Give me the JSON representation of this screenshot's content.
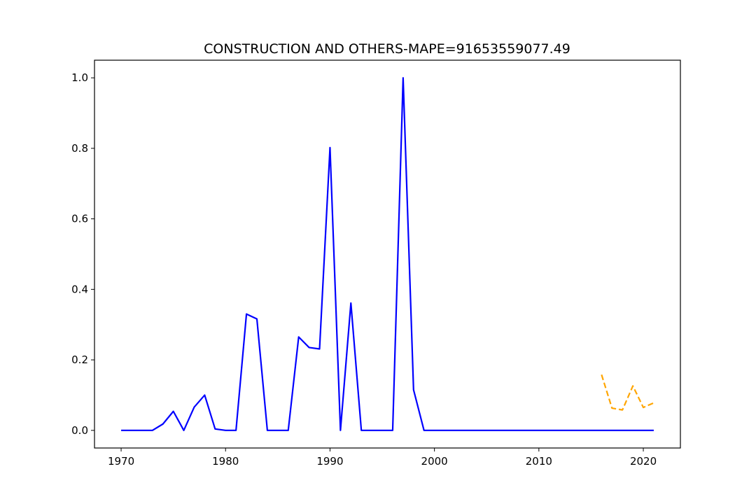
{
  "chart_data": {
    "type": "line",
    "title": "CONSTRUCTION AND OTHERS-MAPE=91653559077.49",
    "xlabel": "",
    "ylabel": "",
    "xlim": [
      1967.45,
      2023.55
    ],
    "ylim": [
      -0.05,
      1.05
    ],
    "xticks": [
      1970,
      1980,
      1990,
      2000,
      2010,
      2020
    ],
    "yticks": [
      0.0,
      0.2,
      0.4,
      0.6,
      0.8,
      1.0
    ],
    "xtick_labels": [
      "1970",
      "1980",
      "1990",
      "2000",
      "2010",
      "2020"
    ],
    "ytick_labels": [
      "0.0",
      "0.2",
      "0.4",
      "0.6",
      "0.8",
      "1.0"
    ],
    "grid": false,
    "series": [
      {
        "color": "#0000ff",
        "style": "solid",
        "x": [
          1970,
          1971,
          1972,
          1973,
          1974,
          1975,
          1976,
          1977,
          1978,
          1979,
          1980,
          1981,
          1982,
          1983,
          1984,
          1985,
          1986,
          1987,
          1988,
          1989,
          1990,
          1991,
          1992,
          1993,
          1994,
          1995,
          1996,
          1997,
          1998,
          1999,
          2000,
          2001,
          2002,
          2003,
          2004,
          2005,
          2006,
          2007,
          2008,
          2009,
          2010,
          2011,
          2012,
          2013,
          2014,
          2015,
          2016,
          2017,
          2018,
          2019,
          2020,
          2021
        ],
        "values": [
          0,
          0,
          0,
          0,
          0.018,
          0.054,
          0,
          0.066,
          0.1,
          0.004,
          0,
          0,
          0.33,
          0.316,
          0,
          0,
          0,
          0.265,
          0.235,
          0.231,
          0.802,
          0,
          0.361,
          0,
          0,
          0,
          0,
          1.0,
          0.115,
          0,
          0,
          0,
          0,
          0,
          0,
          0,
          0,
          0,
          0,
          0,
          0,
          0,
          0,
          0,
          0,
          0,
          0,
          0,
          0,
          0,
          0,
          0
        ]
      },
      {
        "color": "#ffa500",
        "style": "dashed",
        "x": [
          2016,
          2017,
          2018,
          2019,
          2020,
          2021
        ],
        "values": [
          0.158,
          0.063,
          0.058,
          0.126,
          0.065,
          0.078
        ]
      }
    ]
  }
}
